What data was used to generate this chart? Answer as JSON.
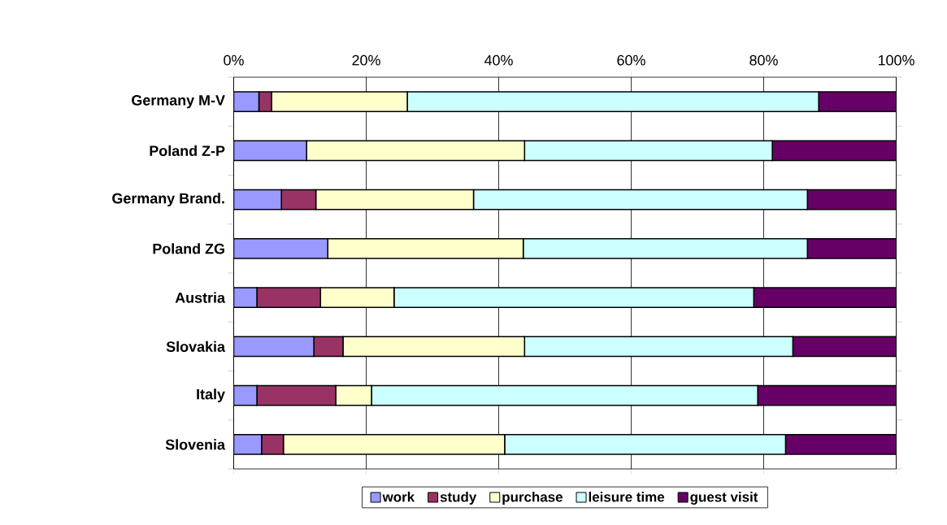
{
  "chart_data": {
    "type": "bar",
    "orientation": "horizontal",
    "stacked": true,
    "categories": [
      "Germany M-V",
      "Poland Z-P",
      "Germany Brand.",
      "Poland ZG",
      "Austria",
      "Slovakia",
      "Italy",
      "Slovenia"
    ],
    "series": [
      {
        "name": "work",
        "color": "#9999ff",
        "values": [
          3.8,
          11.0,
          7.2,
          14.2,
          3.5,
          12.1,
          3.5,
          4.2
        ]
      },
      {
        "name": "study",
        "color": "#993366",
        "values": [
          1.9,
          0,
          5.2,
          0,
          9.6,
          4.4,
          11.9,
          3.3
        ]
      },
      {
        "name": "purchase",
        "color": "#ffffcc",
        "values": [
          20.5,
          32.9,
          23.8,
          29.5,
          11.1,
          27.4,
          5.4,
          33.4
        ]
      },
      {
        "name": "leisure time",
        "color": "#ccffff",
        "values": [
          62.1,
          37.4,
          50.4,
          42.9,
          54.3,
          40.5,
          58.3,
          42.4
        ]
      },
      {
        "name": "guest visit",
        "color": "#660066",
        "values": [
          11.7,
          18.7,
          13.4,
          13.4,
          21.5,
          15.6,
          20.9,
          16.7
        ]
      }
    ],
    "xlim": [
      0,
      100
    ],
    "xticks": [
      {
        "value": 0,
        "label": "0%"
      },
      {
        "value": 20,
        "label": "20%"
      },
      {
        "value": 40,
        "label": "40%"
      },
      {
        "value": 60,
        "label": "60%"
      },
      {
        "value": 80,
        "label": "80%"
      },
      {
        "value": 100,
        "label": "100%"
      }
    ],
    "grid": "x",
    "legend": "bottom"
  }
}
